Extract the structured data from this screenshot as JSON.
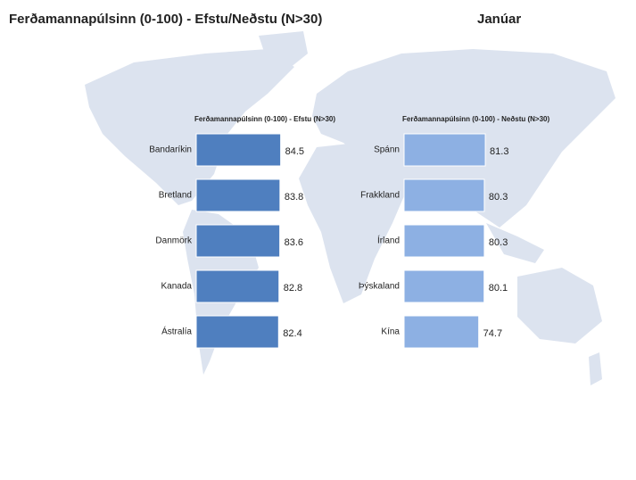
{
  "header": {
    "title": "Ferðamannapúlsinn (0-100) - Efstu/Neðstu (N>30)",
    "month": "Janúar"
  },
  "chart_data": [
    {
      "type": "barh",
      "title": "Ferðamannapúlsinn (0-100) - Efstu (N>30)",
      "categories": [
        "Bandaríkin",
        "Bretland",
        "Danmörk",
        "Kanada",
        "Ástralía"
      ],
      "values": [
        84.5,
        83.8,
        83.6,
        82.8,
        82.4
      ],
      "color": "#4f7fbf"
    },
    {
      "type": "barh",
      "title": "Ferðamannapúlsinn (0-100) - Neðstu (N>30)",
      "categories": [
        "Spánn",
        "Frakkland",
        "Írland",
        "Þýskaland",
        "Kína"
      ],
      "values": [
        81.3,
        80.3,
        80.3,
        80.1,
        74.7
      ],
      "color": "#8db0e3"
    }
  ]
}
